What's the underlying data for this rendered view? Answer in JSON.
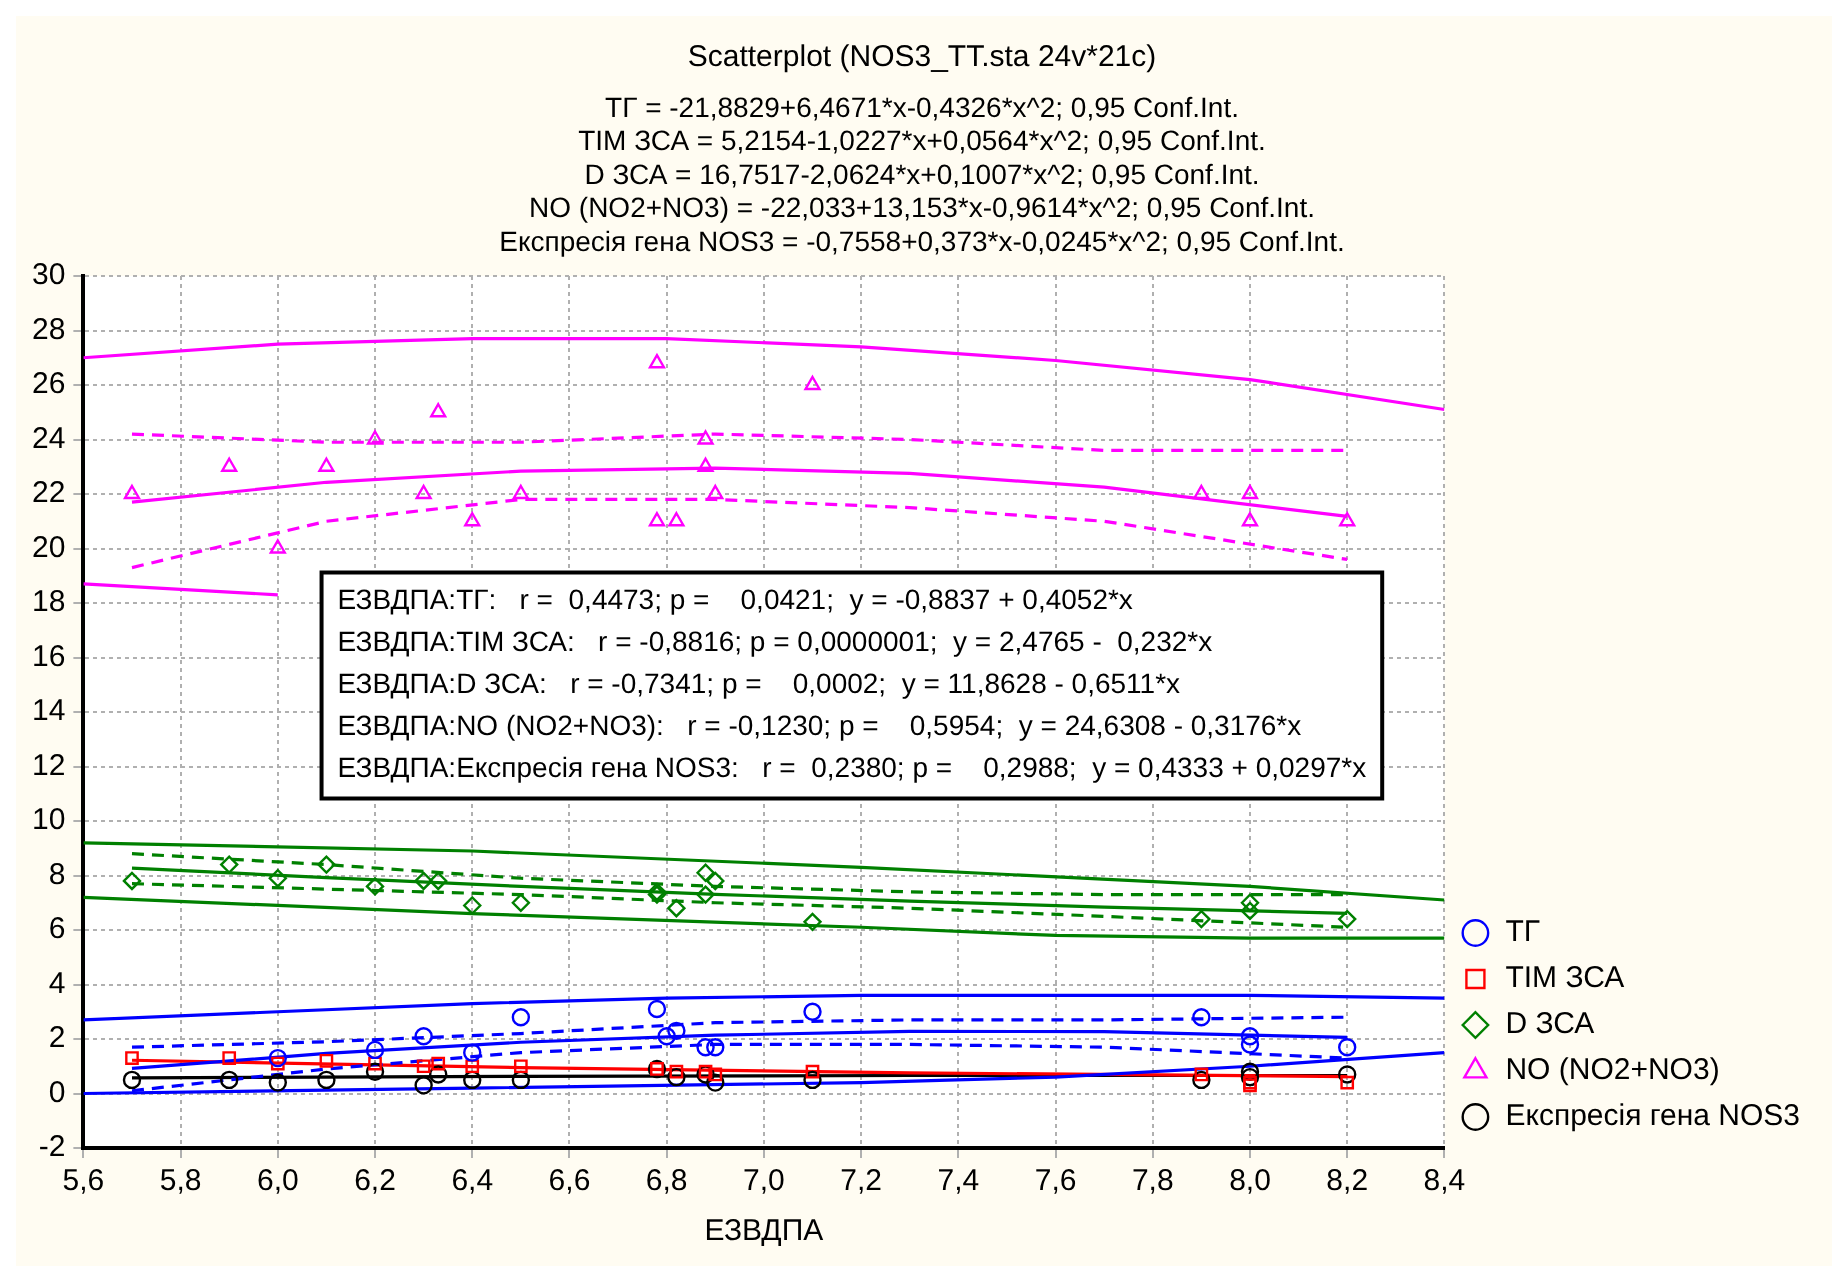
{
  "chart_data": {
    "type": "scatter",
    "title": "Scatterplot (NOS3_TT.sta 24v*21c)",
    "subtitle": "ТГ = -21,8829+6,4671*x-0,4326*x^2; 0,95 Conf.Int.\nТІМ ЗСА = 5,2154-1,0227*x+0,0564*x^2; 0,95 Conf.Int.\nD ЗСА = 16,7517-2,0624*x+0,1007*x^2; 0,95 Conf.Int.\nNO (NO2+NO3) = -22,033+13,153*x-0,9614*x^2; 0,95 Conf.Int.\nЕкспресія гена NOS3 = -0,7558+0,373*x-0,0245*x^2; 0,95 Conf.Int.",
    "xlabel": "ЕЗВДПА",
    "annotations": [
      "ЕЗВДПА:ТГ:   r =  0,4473; p =    0,0421;  y = -0,8837 + 0,4052*x",
      "ЕЗВДПА:ТІМ ЗСА:   r = -0,8816; p = 0,0000001;  y = 2,4765 -  0,232*x",
      "ЕЗВДПА:D ЗСА:   r = -0,7341; p =    0,0002;  y = 11,8628 - 0,6511*x",
      "ЕЗВДПА:NO (NO2+NO3):   r = -0,1230; p =    0,5954;  y = 24,6308 - 0,3176*x",
      "ЕЗВДПА:Експресія гена NOS3:   r =  0,2380; p =    0,2988;  y = 0,4333 + 0,0297*x"
    ],
    "xlim": [
      5.6,
      8.4
    ],
    "xticks": [
      {
        "value": 5.6,
        "label": "5,6"
      },
      {
        "value": 5.8,
        "label": "5,8"
      },
      {
        "value": 6,
        "label": "6,0"
      },
      {
        "value": 6.2,
        "label": "6,2"
      },
      {
        "value": 6.4,
        "label": "6,4"
      },
      {
        "value": 6.6,
        "label": "6,6"
      },
      {
        "value": 6.8,
        "label": "6,8"
      },
      {
        "value": 7,
        "label": "7,0"
      },
      {
        "value": 7.2,
        "label": "7,2"
      },
      {
        "value": 7.4,
        "label": "7,4"
      },
      {
        "value": 7.6,
        "label": "7,6"
      },
      {
        "value": 7.8,
        "label": "7,8"
      },
      {
        "value": 8,
        "label": "8,0"
      },
      {
        "value": 8.2,
        "label": "8,2"
      },
      {
        "value": 8.4,
        "label": "8,4"
      }
    ],
    "ylim": [
      -2,
      30
    ],
    "yticks": [
      -2,
      0,
      2,
      4,
      6,
      8,
      10,
      12,
      14,
      16,
      18,
      20,
      22,
      24,
      26,
      28,
      30
    ],
    "grid": true,
    "legend": "bottom right",
    "series": [
      {
        "name": "ТГ",
        "type": "scatter",
        "marker": "circle",
        "color": "#0000ff",
        "x": [
          6.0,
          6.2,
          6.3,
          6.4,
          6.5,
          6.78,
          6.8,
          6.82,
          6.88,
          6.9,
          7.1,
          7.9,
          8.0,
          8.0,
          8.2
        ],
        "values": [
          1.3,
          1.6,
          2.1,
          1.5,
          2.8,
          3.1,
          2.1,
          2.3,
          1.7,
          1.7,
          3.0,
          2.8,
          2.1,
          1.8,
          1.7
        ]
      },
      {
        "name": "ТІМ ЗСА",
        "type": "scatter",
        "marker": "square",
        "color": "#ff0000",
        "x": [
          5.7,
          5.9,
          6.0,
          6.1,
          6.2,
          6.3,
          6.33,
          6.4,
          6.5,
          6.78,
          6.82,
          6.88,
          6.9,
          7.1,
          7.9,
          8.0,
          8.0,
          8.2
        ],
        "values": [
          1.3,
          1.3,
          1.1,
          1.2,
          1.1,
          1.0,
          1.1,
          1.0,
          1.0,
          0.9,
          0.8,
          0.8,
          0.7,
          0.8,
          0.7,
          0.3,
          0.4,
          0.4
        ]
      },
      {
        "name": "D ЗСА",
        "type": "scatter",
        "marker": "diamond",
        "color": "#008000",
        "x": [
          5.7,
          5.9,
          6.0,
          6.1,
          6.2,
          6.3,
          6.33,
          6.4,
          6.5,
          6.78,
          6.78,
          6.82,
          6.88,
          6.88,
          6.9,
          7.1,
          7.9,
          8.0,
          8.0,
          8.2
        ],
        "values": [
          7.8,
          8.4,
          7.9,
          8.4,
          7.6,
          7.8,
          7.8,
          6.9,
          7.0,
          7.3,
          7.4,
          6.8,
          7.3,
          8.1,
          7.8,
          6.3,
          6.4,
          7.0,
          6.7,
          6.4
        ]
      },
      {
        "name": "NO (NO2+NO3)",
        "type": "scatter",
        "marker": "triangle",
        "color": "#ff00ff",
        "x": [
          5.7,
          5.9,
          6.0,
          6.1,
          6.2,
          6.3,
          6.33,
          6.4,
          6.5,
          6.78,
          6.78,
          6.82,
          6.88,
          6.88,
          6.9,
          7.1,
          7.9,
          8.0,
          8.0,
          8.2
        ],
        "values": [
          22,
          23,
          20,
          23,
          24,
          22,
          25,
          21,
          22,
          26.8,
          21,
          21,
          24,
          23,
          22,
          26,
          22,
          22,
          21,
          21
        ]
      },
      {
        "name": "Експресія гена NOS3",
        "type": "scatter",
        "marker": "circle",
        "color": "#000000",
        "x": [
          5.7,
          5.9,
          6.0,
          6.1,
          6.2,
          6.3,
          6.33,
          6.4,
          6.5,
          6.78,
          6.82,
          6.88,
          6.9,
          7.1,
          7.9,
          8.0,
          8.0,
          8.2
        ],
        "values": [
          0.5,
          0.5,
          0.4,
          0.5,
          0.8,
          0.3,
          0.7,
          0.5,
          0.5,
          0.9,
          0.6,
          0.7,
          0.4,
          0.5,
          0.5,
          0.8,
          0.6,
          0.7
        ]
      },
      {
        "type": "line",
        "line_style": "solid",
        "color": "#0000ff",
        "x": [
          5.7,
          6.1,
          6.5,
          6.9,
          7.3,
          7.7,
          8.2
        ],
        "values": [
          0.92,
          1.47,
          1.88,
          2.14,
          2.28,
          2.27,
          2.06
        ]
      },
      {
        "type": "line",
        "line_style": "dashed",
        "color": "#0000ff",
        "x": [
          5.7,
          6.1,
          6.5,
          6.9,
          7.3,
          7.7,
          8.2
        ],
        "values": [
          0.1,
          0.9,
          1.5,
          1.8,
          1.8,
          1.7,
          1.3
        ]
      },
      {
        "type": "line",
        "line_style": "dashed",
        "color": "#0000ff",
        "x": [
          5.7,
          6.1,
          6.5,
          6.9,
          7.3,
          7.7,
          8.2
        ],
        "values": [
          1.7,
          1.9,
          2.2,
          2.6,
          2.7,
          2.7,
          2.8
        ]
      },
      {
        "type": "line",
        "line_style": "solid",
        "color": "#0000ff",
        "x": [
          5.6,
          6.0,
          6.4,
          6.8,
          7.2,
          7.6,
          8.0,
          8.4
        ],
        "values": [
          2.7,
          3.0,
          3.3,
          3.5,
          3.6,
          3.6,
          3.6,
          3.5
        ]
      },
      {
        "type": "line",
        "line_style": "solid",
        "color": "#0000ff",
        "x": [
          5.6,
          6.4,
          7.2,
          7.6,
          8.0,
          8.4
        ],
        "values": [
          0.0,
          0.2,
          0.4,
          0.6,
          1.0,
          1.5
        ]
      },
      {
        "type": "line",
        "line_style": "solid",
        "color": "#ff0000",
        "x": [
          5.7,
          6.5,
          7.3,
          8.2
        ],
        "values": [
          1.22,
          0.95,
          0.76,
          0.62
        ]
      },
      {
        "type": "line",
        "line_style": "solid",
        "color": "#008000",
        "x": [
          5.7,
          6.1,
          6.5,
          6.9,
          7.3,
          7.7,
          8.2
        ],
        "values": [
          8.27,
          7.92,
          7.6,
          7.31,
          7.06,
          6.84,
          6.61
        ]
      },
      {
        "type": "line",
        "line_style": "dashed",
        "color": "#008000",
        "x": [
          5.7,
          6.1,
          6.5,
          6.9,
          7.3,
          7.7,
          8.2
        ],
        "values": [
          7.7,
          7.5,
          7.3,
          7.0,
          6.8,
          6.5,
          6.1
        ]
      },
      {
        "type": "line",
        "line_style": "dashed",
        "color": "#008000",
        "x": [
          5.7,
          6.1,
          6.5,
          6.9,
          7.3,
          7.7,
          8.2
        ],
        "values": [
          8.8,
          8.4,
          7.9,
          7.6,
          7.4,
          7.3,
          7.3
        ]
      },
      {
        "type": "line",
        "line_style": "solid",
        "color": "#008000",
        "x": [
          5.6,
          6.4,
          7.2,
          8.0,
          8.4
        ],
        "values": [
          9.2,
          8.9,
          8.3,
          7.6,
          7.1
        ]
      },
      {
        "type": "line",
        "line_style": "solid",
        "color": "#008000",
        "x": [
          5.6,
          6.4,
          7.2,
          7.6,
          8.0,
          8.4
        ],
        "values": [
          7.2,
          6.6,
          6.1,
          5.8,
          5.7,
          5.7
        ]
      },
      {
        "type": "line",
        "line_style": "solid",
        "color": "#ff00ff",
        "x": [
          5.7,
          6.1,
          6.5,
          6.9,
          7.3,
          7.7,
          8.2
        ],
        "values": [
          21.7,
          22.43,
          22.84,
          22.95,
          22.76,
          22.25,
          21.18
        ]
      },
      {
        "type": "line",
        "line_style": "dashed",
        "color": "#ff00ff",
        "x": [
          5.7,
          6.1,
          6.5,
          6.9,
          7.3,
          7.7,
          8.2
        ],
        "values": [
          19.3,
          21.0,
          21.8,
          21.8,
          21.5,
          21.0,
          19.6
        ]
      },
      {
        "type": "line",
        "line_style": "dashed",
        "color": "#ff00ff",
        "x": [
          5.7,
          6.1,
          6.5,
          6.9,
          7.3,
          7.7,
          8.2
        ],
        "values": [
          24.2,
          23.9,
          23.9,
          24.2,
          24.0,
          23.6,
          23.6
        ]
      },
      {
        "type": "line",
        "line_style": "solid",
        "color": "#ff00ff",
        "x": [
          5.6,
          6.0,
          6.4,
          6.8,
          7.2,
          7.6,
          8.0,
          8.4
        ],
        "values": [
          27.0,
          27.5,
          27.7,
          27.7,
          27.4,
          26.9,
          26.2,
          25.1
        ]
      },
      {
        "type": "line",
        "line_style": "solid",
        "color": "#ff00ff",
        "x": [
          5.6,
          5.8,
          6.0
        ],
        "values": [
          18.7,
          18.5,
          18.3
        ]
      },
      {
        "type": "line",
        "line_style": "solid",
        "color": "#000000",
        "x": [
          5.7,
          6.5,
          7.3,
          8.2
        ],
        "values": [
          0.57,
          0.63,
          0.66,
          0.66
        ]
      }
    ]
  }
}
